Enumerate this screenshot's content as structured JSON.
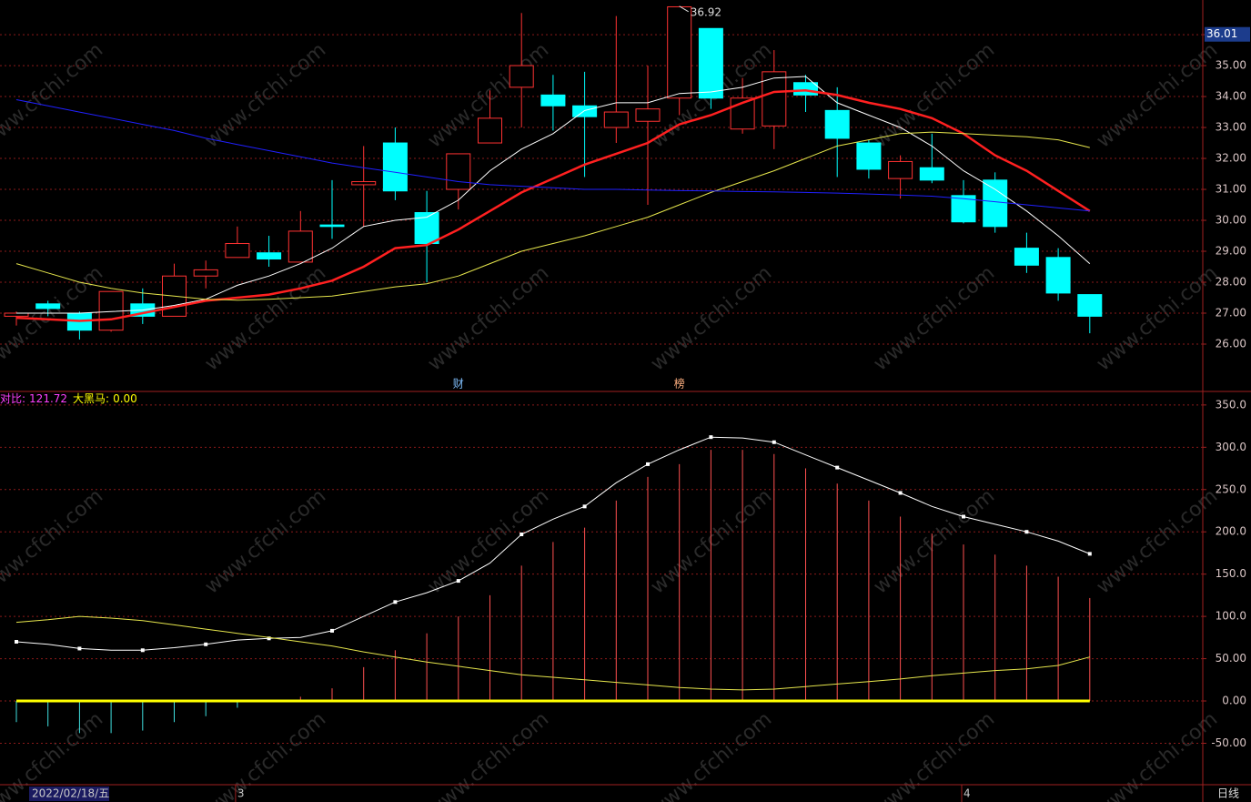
{
  "chart_data": [
    {
      "type": "candlestick",
      "up_color": "#ff3232",
      "down_color": "#00ffff",
      "open": [
        26.9,
        27.3,
        27.0,
        26.45,
        27.3,
        26.9,
        28.2,
        28.8,
        28.95,
        28.65,
        29.85,
        31.15,
        32.5,
        30.25,
        31.0,
        32.5,
        34.3,
        34.05,
        33.7,
        33.0,
        33.2,
        33.95,
        36.2,
        32.95,
        33.05,
        34.45,
        33.55,
        32.5,
        31.35,
        31.7,
        30.8,
        31.3,
        29.1,
        28.8,
        27.6
      ],
      "high": [
        27.05,
        27.4,
        27.05,
        27.7,
        27.8,
        28.6,
        28.7,
        29.8,
        29.5,
        30.3,
        31.3,
        32.4,
        33.0,
        30.95,
        32.15,
        34.2,
        36.7,
        34.7,
        34.8,
        36.6,
        35.0,
        36.92,
        36.2,
        34.6,
        35.5,
        34.7,
        34.3,
        32.6,
        32.1,
        32.8,
        31.3,
        31.55,
        29.6,
        29.1,
        27.6
      ],
      "low": [
        26.6,
        26.9,
        26.15,
        26.4,
        26.65,
        26.9,
        27.8,
        28.8,
        28.5,
        28.65,
        29.4,
        29.8,
        30.65,
        28.0,
        30.35,
        32.5,
        33.0,
        32.9,
        31.4,
        32.5,
        30.5,
        33.4,
        33.6,
        32.8,
        32.3,
        33.5,
        31.4,
        31.35,
        30.7,
        31.2,
        29.9,
        29.6,
        28.3,
        27.4,
        26.35
      ],
      "close": [
        27.0,
        27.15,
        26.45,
        27.7,
        26.9,
        28.2,
        28.4,
        29.25,
        28.75,
        29.65,
        29.8,
        31.25,
        30.95,
        29.25,
        32.15,
        33.3,
        35.0,
        33.7,
        33.35,
        33.5,
        33.6,
        36.9,
        33.95,
        33.95,
        34.8,
        34.05,
        32.65,
        31.65,
        31.9,
        31.3,
        29.95,
        29.8,
        28.55,
        27.65,
        26.9
      ],
      "lines": [
        {
          "color": "#ffffff",
          "width": 1,
          "values": [
            27.0,
            27.0,
            27.0,
            27.05,
            27.1,
            27.25,
            27.45,
            27.9,
            28.2,
            28.6,
            29.1,
            29.8,
            30.0,
            30.1,
            30.65,
            31.6,
            32.3,
            32.8,
            33.55,
            33.8,
            33.8,
            34.1,
            34.15,
            34.3,
            34.6,
            34.65,
            33.8,
            33.4,
            33.0,
            32.4,
            31.6,
            31.0,
            30.3,
            29.5,
            28.6
          ]
        },
        {
          "color": "#ff2020",
          "width": 2.5,
          "values": [
            26.85,
            26.8,
            26.75,
            26.8,
            27.0,
            27.2,
            27.4,
            27.5,
            27.6,
            27.8,
            28.05,
            28.5,
            29.1,
            29.2,
            29.7,
            30.3,
            30.9,
            31.35,
            31.8,
            32.15,
            32.5,
            33.1,
            33.4,
            33.8,
            34.15,
            34.2,
            34.05,
            33.8,
            33.6,
            33.3,
            32.8,
            32.1,
            31.6,
            30.95,
            30.3
          ]
        },
        {
          "color": "#e6e64c",
          "width": 1,
          "values": [
            28.6,
            28.3,
            28.0,
            27.8,
            27.65,
            27.55,
            27.45,
            27.42,
            27.45,
            27.5,
            27.55,
            27.7,
            27.85,
            27.95,
            28.2,
            28.6,
            29.0,
            29.25,
            29.5,
            29.8,
            30.1,
            30.5,
            30.9,
            31.25,
            31.6,
            32.0,
            32.4,
            32.6,
            32.8,
            32.85,
            32.8,
            32.75,
            32.7,
            32.6,
            32.35
          ]
        },
        {
          "color": "#2020ff",
          "width": 1,
          "values": [
            33.9,
            33.7,
            33.5,
            33.3,
            33.1,
            32.9,
            32.65,
            32.45,
            32.25,
            32.05,
            31.85,
            31.7,
            31.55,
            31.4,
            31.25,
            31.15,
            31.1,
            31.05,
            31.0,
            31.0,
            30.98,
            30.96,
            30.95,
            30.93,
            30.92,
            30.9,
            30.88,
            30.85,
            30.82,
            30.78,
            30.7,
            30.6,
            30.5,
            30.4,
            30.3
          ]
        }
      ],
      "markers": [
        null,
        null,
        null,
        null,
        null,
        null,
        null,
        null,
        null,
        null,
        null,
        null,
        null,
        null,
        "财",
        null,
        null,
        null,
        null,
        null,
        null,
        "榜",
        null,
        null,
        null,
        null,
        null,
        null,
        null,
        null,
        null,
        null,
        null,
        null,
        null
      ],
      "current_label": 36.01,
      "ylim": [
        24.47,
        37.12
      ],
      "yticks": [
        {
          "value": 26,
          "label": "26.00"
        },
        {
          "value": 27,
          "label": "27.00"
        },
        {
          "value": 28,
          "label": "28.00"
        },
        {
          "value": 29,
          "label": "29.00"
        },
        {
          "value": 30,
          "label": "30.00"
        },
        {
          "value": 31,
          "label": "31.00"
        },
        {
          "value": 32,
          "label": "32.00"
        },
        {
          "value": 33,
          "label": "33.00"
        },
        {
          "value": 34,
          "label": "34.00"
        },
        {
          "value": 35,
          "label": "35.00"
        },
        {
          "value": 36,
          "label": "36.00"
        }
      ],
      "grid": true
    },
    {
      "type": "bar",
      "categories": [
        "2022/02/18/五",
        null,
        null,
        null,
        null,
        null,
        null,
        "3",
        null,
        null,
        null,
        null,
        null,
        null,
        null,
        null,
        null,
        null,
        null,
        null,
        null,
        null,
        null,
        null,
        null,
        null,
        null,
        null,
        null,
        null,
        "4",
        null,
        null,
        null,
        null
      ],
      "period_label": "日线",
      "series": [
        {
          "name": "对比:",
          "color": "#ff5050",
          "negative_color": "#40e0e0",
          "legend_color": "#ff40ff",
          "values": [
            -25,
            -30,
            -38,
            -38,
            -35,
            -25,
            -18,
            -8,
            1,
            5,
            15,
            40,
            60,
            80,
            100,
            125,
            160,
            188,
            205,
            237,
            265,
            280,
            297,
            297,
            292,
            275,
            257,
            237,
            218,
            198,
            185,
            173,
            160,
            147,
            121.72
          ]
        },
        {
          "name": "大黑马:",
          "color": "#ffff00",
          "value_label": "0.00",
          "values": [
            0,
            0,
            0,
            0,
            0,
            0,
            0,
            0,
            0,
            0,
            0,
            0,
            0,
            0,
            0,
            0,
            0,
            0,
            0,
            0,
            0,
            0,
            0,
            0,
            0,
            0,
            0,
            0,
            0,
            0,
            0,
            0,
            0,
            0,
            0
          ]
        }
      ],
      "lines": [
        {
          "color": "#ffffff",
          "markers": true,
          "values": [
            70,
            67,
            62,
            60,
            60,
            63,
            67,
            72,
            74,
            75,
            83,
            100,
            117,
            128,
            142,
            163,
            197,
            215,
            230,
            258,
            280,
            297,
            312,
            311,
            306,
            291,
            276,
            261,
            246,
            230,
            218,
            209,
            200,
            189,
            174
          ]
        },
        {
          "color": "#e6e64c",
          "values": [
            93,
            96,
            100,
            98,
            95,
            90,
            85,
            80,
            75,
            70,
            65,
            58,
            52,
            46,
            41,
            36,
            31,
            28,
            25,
            22,
            19,
            16,
            14,
            13,
            14,
            17,
            20,
            23,
            26,
            30,
            33,
            36,
            38,
            42,
            52
          ]
        }
      ],
      "ylim": [
        -99,
        366
      ],
      "yticks": [
        {
          "value": 350,
          "label": "350.0"
        },
        {
          "value": 300,
          "label": "300.0"
        },
        {
          "value": 250,
          "label": "250.0"
        },
        {
          "value": 200,
          "label": "200.0"
        },
        {
          "value": 150,
          "label": "150.0"
        },
        {
          "value": 100,
          "label": "100.0"
        },
        {
          "value": 50,
          "label": "50.00"
        },
        {
          "value": 0,
          "label": "0.00"
        },
        {
          "value": -50,
          "label": "-50.00"
        }
      ],
      "grid": true
    }
  ],
  "watermark": "www.cfchi.com"
}
